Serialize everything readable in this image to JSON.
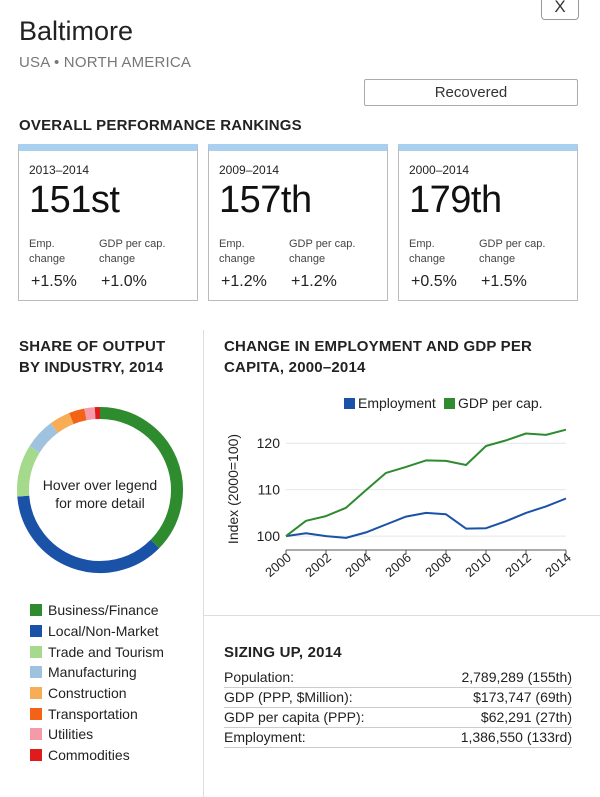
{
  "header": {
    "close_label": "X",
    "city": "Baltimore",
    "region": "USA • NORTH AMERICA",
    "status": "Recovered"
  },
  "rankings": {
    "title": "OVERALL PERFORMANCE RANKINGS",
    "cards": [
      {
        "period": "2013–2014",
        "rank": "151st",
        "emp_label_1": "Emp.",
        "emp_label_2": "change",
        "gdp_label_1": "GDP per cap.",
        "gdp_label_2": "change",
        "emp_value": "+1.5%",
        "gdp_value": "+1.0%"
      },
      {
        "period": "2009–2014",
        "rank": "157th",
        "emp_label_1": "Emp.",
        "emp_label_2": "change",
        "gdp_label_1": "GDP per cap.",
        "gdp_label_2": "change",
        "emp_value": "+1.2%",
        "gdp_value": "+1.2%"
      },
      {
        "period": "2000–2014",
        "rank": "179th",
        "emp_label_1": "Emp.",
        "emp_label_2": "change",
        "gdp_label_1": "GDP per cap.",
        "gdp_label_2": "change",
        "emp_value": "+0.5%",
        "gdp_value": "+1.5%"
      }
    ]
  },
  "share": {
    "title_1": "SHARE OF OUTPUT",
    "title_2": "BY INDUSTRY, 2014",
    "center_1": "Hover over legend",
    "center_2": "for more detail"
  },
  "trend": {
    "title_1": "CHANGE IN EMPLOYMENT AND GDP PER",
    "title_2": "CAPITA, 2000–2014"
  },
  "sizing": {
    "title": "SIZING UP, 2014",
    "rows": [
      {
        "label": "Population:",
        "value": "2,789,289 (155th)"
      },
      {
        "label": "GDP (PPP, $Million):",
        "value": "$173,747 (69th)"
      },
      {
        "label": "GDP per capita (PPP):",
        "value": "$62,291 (27th)"
      },
      {
        "label": "Employment:",
        "value": "1,386,550 (133rd)"
      }
    ]
  },
  "chart_data": [
    {
      "type": "pie",
      "title": "SHARE OF OUTPUT BY INDUSTRY, 2014",
      "categories": [
        "Business/Finance",
        "Local/Non-Market",
        "Trade and Tourism",
        "Manufacturing",
        "Construction",
        "Transportation",
        "Utilities",
        "Commodities"
      ],
      "values": [
        37,
        36,
        10,
        6,
        4,
        3,
        2,
        1
      ],
      "colors": [
        "#2e8b2e",
        "#1a52a8",
        "#a5d98b",
        "#9fc3df",
        "#f7ad55",
        "#f26318",
        "#f49aa8",
        "#e01b1b"
      ],
      "legend_placement": "bottom"
    },
    {
      "type": "line",
      "title": "CHANGE IN EMPLOYMENT AND GDP PER CAPITA, 2000–2014",
      "xlabel": "",
      "ylabel": "Index (2000=100)",
      "x": [
        2000,
        2001,
        2002,
        2003,
        2004,
        2005,
        2006,
        2007,
        2008,
        2009,
        2010,
        2011,
        2012,
        2013,
        2014
      ],
      "series": [
        {
          "name": "Employment",
          "color": "#1a52a8",
          "values": [
            100,
            100.6,
            100.0,
            99.6,
            100.8,
            102.5,
            104.2,
            105.0,
            104.7,
            101.6,
            101.7,
            103.2,
            105.0,
            106.4,
            108.1
          ]
        },
        {
          "name": "GDP per cap.",
          "color": "#2e8b2e",
          "values": [
            100,
            103.3,
            104.3,
            106.1,
            109.9,
            113.6,
            114.9,
            116.3,
            116.2,
            115.3,
            119.4,
            120.6,
            122.1,
            121.8,
            122.9
          ]
        }
      ],
      "xticks": [
        "2000",
        "2002",
        "2004",
        "2006",
        "2008",
        "2010",
        "2012",
        "2014"
      ],
      "yticks": [
        "100",
        "110",
        "120"
      ],
      "ylim": [
        97,
        125
      ],
      "grid": true,
      "legend_placement": "top"
    }
  ]
}
